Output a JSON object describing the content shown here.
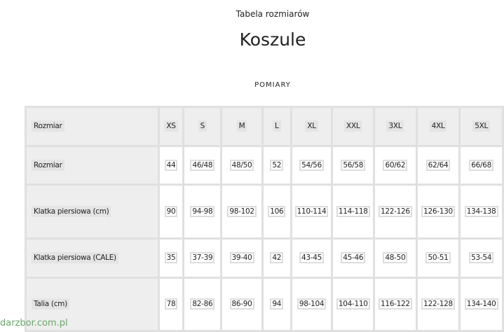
{
  "page": {
    "supertitle": "Tabela rozmiarów",
    "title": "Koszule",
    "section": "POMIARY"
  },
  "table": {
    "header": {
      "label": "Rozmiar",
      "cells": [
        "XS",
        "S",
        "M",
        "L",
        "XL",
        "XXL",
        "3XL",
        "4XL",
        "5XL"
      ]
    },
    "rows": [
      {
        "label": "Rozmiar",
        "cells": [
          "44",
          "46/48",
          "48/50",
          "52",
          "54/56",
          "56/58",
          "60/62",
          "62/64",
          "66/68"
        ]
      },
      {
        "label": "Klatka piersiowa (cm)",
        "cells": [
          "90",
          "94-98",
          "98-102",
          "106",
          "110-114",
          "114-118",
          "122-126",
          "126-130",
          "134-138"
        ]
      },
      {
        "label": "Klatka piersiowa (CALE)",
        "cells": [
          "35",
          "37-39",
          "39-40",
          "42",
          "43-45",
          "45-46",
          "48-50",
          "50-51",
          "53-54"
        ]
      },
      {
        "label": "Talia (cm)",
        "cells": [
          "78",
          "82-86",
          "86-90",
          "94",
          "98-104",
          "104-110",
          "116-122",
          "122-128",
          "134-140"
        ]
      }
    ]
  },
  "watermark": "darzbor.com.pl"
}
